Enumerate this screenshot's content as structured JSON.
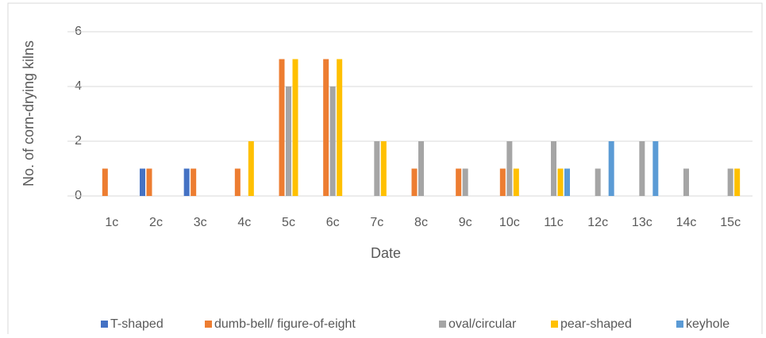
{
  "chart_data": {
    "type": "bar",
    "categories": [
      "1c",
      "2c",
      "3c",
      "4c",
      "5c",
      "6c",
      "7c",
      "8c",
      "9c",
      "10c",
      "11c",
      "12c",
      "13c",
      "14c",
      "15c"
    ],
    "series": [
      {
        "name": "T-shaped",
        "color": "#4472c4",
        "values": [
          0,
          1,
          1,
          0,
          0,
          0,
          0,
          0,
          0,
          0,
          0,
          0,
          0,
          0,
          0
        ]
      },
      {
        "name": "dumb-bell/ figure-of-eight",
        "color": "#ed7d31",
        "values": [
          1,
          1,
          1,
          1,
          5,
          5,
          0,
          1,
          1,
          1,
          0,
          0,
          0,
          0,
          0
        ]
      },
      {
        "name": "oval/circular",
        "color": "#a5a5a5",
        "values": [
          0,
          0,
          0,
          0,
          4,
          4,
          2,
          2,
          1,
          2,
          2,
          1,
          2,
          1,
          1
        ]
      },
      {
        "name": "pear-shaped",
        "color": "#ffc000",
        "values": [
          0,
          0,
          0,
          2,
          5,
          5,
          2,
          0,
          0,
          1,
          1,
          0,
          0,
          0,
          1
        ]
      },
      {
        "name": "keyhole",
        "color": "#5b9bd5",
        "values": [
          0,
          0,
          0,
          0,
          0,
          0,
          0,
          0,
          0,
          0,
          1,
          2,
          2,
          0,
          0
        ]
      }
    ],
    "xlabel": "Date",
    "ylabel": "No. of corn-drying kilns",
    "ylim": [
      0,
      6
    ],
    "yticks": [
      0,
      2,
      4,
      6
    ],
    "grid": true,
    "legend": "bottom"
  }
}
